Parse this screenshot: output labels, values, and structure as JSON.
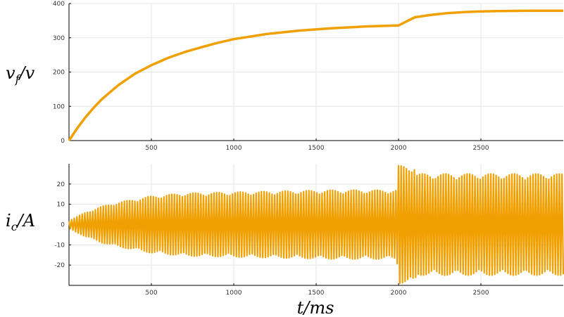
{
  "chart_data": [
    {
      "type": "line",
      "title": "",
      "ylabel_main": "v",
      "ylabel_sub": "f",
      "ylabel_tail": "/v",
      "xlabel": "",
      "xlim": [
        0,
        3000
      ],
      "ylim": [
        0,
        400
      ],
      "xticks": [
        500,
        1000,
        1500,
        2000,
        2500
      ],
      "yticks": [
        0,
        100,
        200,
        300,
        400
      ],
      "grid": true,
      "color": "#f0a000",
      "series": [
        {
          "x": [
            0,
            50,
            100,
            150,
            200,
            300,
            400,
            500,
            600,
            700,
            800,
            900,
            1000,
            1200,
            1400,
            1600,
            1800,
            1990,
            2000,
            2050,
            2100,
            2200,
            2300,
            2400,
            2500,
            2600,
            2800,
            3000
          ],
          "values": [
            0,
            36,
            68,
            96,
            121,
            162,
            195,
            220,
            241,
            258,
            272,
            285,
            296,
            311,
            321,
            328,
            333,
            336,
            336,
            348,
            360,
            367,
            372,
            375,
            377,
            378,
            379,
            379
          ]
        }
      ]
    },
    {
      "type": "line",
      "title": "",
      "ylabel_main": "i",
      "ylabel_sub": "c",
      "ylabel_tail": "/A",
      "xlabel": "t/ms",
      "xlim": [
        0,
        3000
      ],
      "ylim": [
        -30,
        30
      ],
      "xticks": [
        500,
        1000,
        1500,
        2000,
        2500
      ],
      "yticks": [
        -20,
        -10,
        0,
        10,
        20
      ],
      "grid": true,
      "color": "#f0a000",
      "series": [
        {
          "x": [
            0,
            100,
            200,
            300,
            500,
            700,
            1000,
            1300,
            1600,
            1990,
            2000,
            2100,
            2110,
            2500,
            3000
          ],
          "upper": [
            2,
            6,
            9,
            11,
            14,
            15.5,
            16,
            16.5,
            17,
            17,
            29,
            29,
            25,
            25,
            25
          ],
          "lower": [
            -2,
            -6,
            -9,
            -11,
            -14,
            -15.5,
            -16,
            -16.5,
            -17,
            -17,
            -29,
            -29,
            -25,
            -25,
            -25
          ]
        }
      ]
    }
  ]
}
